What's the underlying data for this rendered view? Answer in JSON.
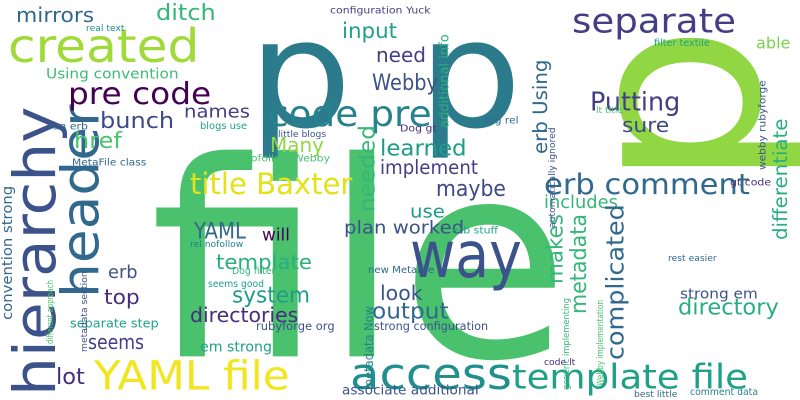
{
  "colors": {
    "c0": "#2c7b8c",
    "c1": "#58c765",
    "c2": "#a0da39",
    "c3": "#433e85",
    "c4": "#3b528b",
    "c5": "#31688e",
    "c6": "#21908d",
    "c7": "#f0e51e",
    "c8": "#440154",
    "c9": "#2a7f8e",
    "c10": "#1fa188",
    "c11": "#35b779",
    "c12": "#472d7b",
    "c13": "#4ac16d",
    "c14": "#26828e",
    "c15": "#7ad151",
    "c16": "#3e4989",
    "c17": "#90d743",
    "c18": "#bddf26",
    "c19": "#1e9c89",
    "c20": "#482173",
    "c21": "#29af7f",
    "c22": "#dfe318",
    "c23": "#3dbc74"
  },
  "words": [
    {
      "id": "w0",
      "text": "file",
      "color": "c13"
    },
    {
      "id": "w1",
      "text": "p",
      "color": "c0"
    },
    {
      "id": "w2",
      "text": "p",
      "color": "c0"
    },
    {
      "id": "w3",
      "text": "p",
      "color": "c17"
    },
    {
      "id": "w4",
      "text": "hierarchy",
      "color": "c4"
    },
    {
      "id": "w5",
      "text": "header",
      "color": "c5"
    },
    {
      "id": "w6",
      "text": "created",
      "color": "c2"
    },
    {
      "id": "w7",
      "text": "separate",
      "color": "c3"
    },
    {
      "id": "w8",
      "text": "way",
      "color": "c4"
    },
    {
      "id": "w9",
      "text": "access",
      "color": "c6"
    },
    {
      "id": "w10",
      "text": "YAML file",
      "color": "c7"
    },
    {
      "id": "w11",
      "text": "template file",
      "color": "c10"
    },
    {
      "id": "w12",
      "text": "pre code",
      "color": "c8"
    },
    {
      "id": "w13",
      "text": "code pre",
      "color": "c14"
    },
    {
      "id": "w14",
      "text": "title Baxter",
      "color": "c22"
    },
    {
      "id": "w15",
      "text": "erb comment",
      "color": "c5"
    },
    {
      "id": "w16",
      "text": "mirrors",
      "color": "c5"
    },
    {
      "id": "w17",
      "text": "ditch",
      "color": "c11"
    },
    {
      "id": "w18",
      "text": "input",
      "color": "c10"
    },
    {
      "id": "w19",
      "text": "need",
      "color": "c3"
    },
    {
      "id": "w20",
      "text": "Webby",
      "color": "c4"
    },
    {
      "id": "w21",
      "text": "erb Using",
      "color": "c5"
    },
    {
      "id": "w22",
      "text": "Using convention",
      "color": "c23"
    },
    {
      "id": "w23",
      "text": "able",
      "color": "c15"
    },
    {
      "id": "w24",
      "text": "Putting",
      "color": "c3"
    },
    {
      "id": "w25",
      "text": "sure",
      "color": "c16"
    },
    {
      "id": "w26",
      "text": "bunch",
      "color": "c16"
    },
    {
      "id": "w27",
      "text": "names",
      "color": "c3"
    },
    {
      "id": "w28",
      "text": "href",
      "color": "c13"
    },
    {
      "id": "w29",
      "text": "Many",
      "color": "c17"
    },
    {
      "id": "w30",
      "text": "learned",
      "color": "c19"
    },
    {
      "id": "w31",
      "text": "implement",
      "color": "c3"
    },
    {
      "id": "w32",
      "text": "maybe",
      "color": "c16"
    },
    {
      "id": "w33",
      "text": "use",
      "color": "c19"
    },
    {
      "id": "w34",
      "text": "includes",
      "color": "c11"
    },
    {
      "id": "w35",
      "text": "needed",
      "color": "c11"
    },
    {
      "id": "w36",
      "text": "differentiate",
      "color": "c21"
    },
    {
      "id": "w37",
      "text": "YAML",
      "color": "c5"
    },
    {
      "id": "w38",
      "text": "will",
      "color": "c8"
    },
    {
      "id": "w39",
      "text": "plan worked",
      "color": "c4"
    },
    {
      "id": "w40",
      "text": "template",
      "color": "c21"
    },
    {
      "id": "w41",
      "text": "makes",
      "color": "c11"
    },
    {
      "id": "w42",
      "text": "metadata",
      "color": "c11"
    },
    {
      "id": "w43",
      "text": "complicated",
      "color": "c5"
    },
    {
      "id": "w44",
      "text": "erb",
      "color": "c4"
    },
    {
      "id": "w45",
      "text": "system",
      "color": "c19"
    },
    {
      "id": "w46",
      "text": "top",
      "color": "c12"
    },
    {
      "id": "w47",
      "text": "look",
      "color": "c4"
    },
    {
      "id": "w48",
      "text": "directory",
      "color": "c21"
    },
    {
      "id": "w49",
      "text": "directories",
      "color": "c12"
    },
    {
      "id": "w50",
      "text": "output",
      "color": "c5"
    },
    {
      "id": "w51",
      "text": "seems",
      "color": "c3"
    },
    {
      "id": "w52",
      "text": "lot",
      "color": "c12"
    },
    {
      "id": "w53",
      "text": "strong em",
      "color": "c4"
    },
    {
      "id": "w54",
      "text": "metadata Now",
      "color": "c14"
    },
    {
      "id": "w55",
      "text": "associate additional",
      "color": "c4"
    },
    {
      "id": "w56",
      "text": "strong configuration",
      "color": "c4"
    },
    {
      "id": "w57",
      "text": "rubyforge org",
      "color": "c4"
    },
    {
      "id": "w58",
      "text": "em strong",
      "color": "c10"
    },
    {
      "id": "w59",
      "text": "convention strong",
      "color": "c5"
    },
    {
      "id": "w60",
      "text": "separate step",
      "color": "c10"
    },
    {
      "id": "w61",
      "text": "additional info",
      "color": "c21"
    },
    {
      "id": "w62",
      "text": "erb stuff",
      "color": "c10"
    },
    {
      "id": "w63",
      "text": "Dog gt",
      "color": "c12"
    },
    {
      "id": "w64",
      "text": "configuration Yuck",
      "color": "c3"
    },
    {
      "id": "w65",
      "text": "real text",
      "color": "c6"
    },
    {
      "id": "w66",
      "text": "run erb",
      "color": "c5"
    },
    {
      "id": "w67",
      "text": "blogs use",
      "color": "c10"
    },
    {
      "id": "w68",
      "text": "little blogs",
      "color": "c4"
    },
    {
      "id": "w69",
      "text": "MetaFile class",
      "color": "c5"
    },
    {
      "id": "w70",
      "text": "nofollow Webby",
      "color": "c13"
    },
    {
      "id": "w71",
      "text": "metadata section",
      "color": "c4"
    },
    {
      "id": "w72",
      "text": "different approach",
      "color": "c13"
    },
    {
      "id": "w73",
      "text": "rel nofollow",
      "color": "c14"
    },
    {
      "id": "w74",
      "text": "Dog filter",
      "color": "c11"
    },
    {
      "id": "w75",
      "text": "seems good",
      "color": "c10"
    },
    {
      "id": "w76",
      "text": "new MetaFile",
      "color": "c5"
    },
    {
      "id": "w77",
      "text": "generic implementing",
      "color": "c11"
    },
    {
      "id": "w78",
      "text": "Webby implementation",
      "color": "c13"
    },
    {
      "id": "w79",
      "text": "code lt",
      "color": "c12"
    },
    {
      "id": "w80",
      "text": "best little",
      "color": "c5"
    },
    {
      "id": "w81",
      "text": "comment data",
      "color": "c14"
    },
    {
      "id": "w82",
      "text": "filter textile",
      "color": "c10"
    },
    {
      "id": "w83",
      "text": "webby rubyforge",
      "color": "c4"
    },
    {
      "id": "w84",
      "text": "lt title",
      "color": "c13"
    },
    {
      "id": "w85",
      "text": "org rel",
      "color": "c5"
    },
    {
      "id": "w86",
      "text": "automatically ignored",
      "color": "c4"
    },
    {
      "id": "w87",
      "text": "gt code",
      "color": "c12"
    },
    {
      "id": "w88",
      "text": "rest easier",
      "color": "c5"
    }
  ]
}
